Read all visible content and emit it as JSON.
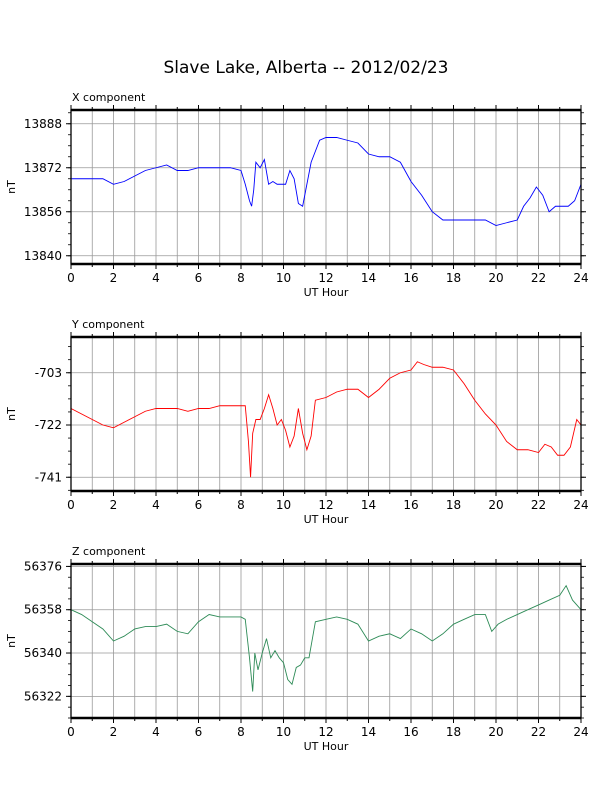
{
  "page_title": "Slave Lake, Alberta -- 2012/02/23",
  "chart_data": [
    {
      "type": "line",
      "title": "X component",
      "xlabel": "UT Hour",
      "ylabel": "nT",
      "xlim": [
        0,
        24
      ],
      "ylim": [
        13837,
        13893
      ],
      "xticks": [
        0,
        2,
        4,
        6,
        8,
        10,
        12,
        14,
        16,
        18,
        20,
        22,
        24
      ],
      "yticks": [
        13840,
        13856,
        13872,
        13888
      ],
      "grid": true,
      "color": "#0000ff",
      "series": [
        {
          "x": [
            0,
            0.5,
            1,
            1.5,
            2,
            2.5,
            3,
            3.5,
            4,
            4.5,
            5,
            5.5,
            6,
            6.5,
            7,
            7.5,
            8,
            8.2,
            8.4,
            8.5,
            8.6,
            8.7,
            8.9,
            9.1,
            9.3,
            9.5,
            9.7,
            9.9,
            10.1,
            10.3,
            10.5,
            10.7,
            10.9,
            11.1,
            11.3,
            11.5,
            11.7,
            12,
            12.5,
            13,
            13.5,
            14,
            14.5,
            15,
            15.5,
            16,
            16.5,
            17,
            17.5,
            18,
            18.5,
            19,
            19.5,
            20,
            20.5,
            21,
            21.3,
            21.6,
            21.9,
            22.2,
            22.5,
            22.8,
            23.1,
            23.4,
            23.7,
            24
          ],
          "values": [
            13868,
            13868,
            13868,
            13868,
            13866,
            13867,
            13869,
            13871,
            13872,
            13873,
            13871,
            13871,
            13872,
            13872,
            13872,
            13872,
            13871,
            13866,
            13860,
            13858,
            13864,
            13874,
            13872,
            13875,
            13866,
            13867,
            13866,
            13866,
            13866,
            13871,
            13868,
            13859,
            13858,
            13866,
            13874,
            13878,
            13882,
            13883,
            13883,
            13882,
            13881,
            13877,
            13876,
            13876,
            13874,
            13867,
            13862,
            13856,
            13853,
            13853,
            13853,
            13853,
            13853,
            13851,
            13852,
            13853,
            13858,
            13861,
            13865,
            13862,
            13856,
            13858,
            13858,
            13858,
            13860,
            13866
          ]
        }
      ]
    },
    {
      "type": "line",
      "title": "Y component",
      "xlabel": "UT Hour",
      "ylabel": "nT",
      "xlim": [
        0,
        24
      ],
      "ylim": [
        -746,
        -690
      ],
      "xticks": [
        0,
        2,
        4,
        6,
        8,
        10,
        12,
        14,
        16,
        18,
        20,
        22,
        24
      ],
      "yticks": [
        -703,
        -722,
        -741
      ],
      "grid": true,
      "color": "#ff0000",
      "series": [
        {
          "x": [
            0,
            0.5,
            1,
            1.5,
            2,
            2.5,
            3,
            3.5,
            4,
            4.5,
            5,
            5.5,
            6,
            6.5,
            7,
            7.5,
            8,
            8.2,
            8.35,
            8.45,
            8.55,
            8.7,
            8.9,
            9.1,
            9.3,
            9.5,
            9.7,
            9.9,
            10.1,
            10.3,
            10.5,
            10.7,
            10.9,
            11.1,
            11.3,
            11.5,
            12,
            12.5,
            13,
            13.5,
            14,
            14.5,
            15,
            15.5,
            16,
            16.3,
            16.6,
            17,
            17.5,
            18,
            18.5,
            19,
            19.5,
            20,
            20.5,
            21,
            21.5,
            22,
            22.3,
            22.6,
            22.9,
            23.2,
            23.5,
            23.8,
            24
          ],
          "values": [
            -716,
            -718,
            -720,
            -722,
            -723,
            -721,
            -719,
            -717,
            -716,
            -716,
            -716,
            -717,
            -716,
            -716,
            -715,
            -715,
            -715,
            -715,
            -728,
            -741,
            -725,
            -720,
            -720,
            -716,
            -711,
            -716,
            -722,
            -720,
            -724,
            -730,
            -726,
            -716,
            -725,
            -731,
            -726,
            -713,
            -712,
            -710,
            -709,
            -709,
            -712,
            -709,
            -705,
            -703,
            -702,
            -699,
            -700,
            -701,
            -701,
            -702,
            -707,
            -713,
            -718,
            -722,
            -728,
            -731,
            -731,
            -732,
            -729,
            -730,
            -733,
            -733,
            -730,
            -720,
            -722
          ]
        }
      ]
    },
    {
      "type": "line",
      "title": "Z component",
      "xlabel": "UT Hour",
      "ylabel": "nT",
      "xlim": [
        0,
        24
      ],
      "ylim": [
        56313,
        56377
      ],
      "xticks": [
        0,
        2,
        4,
        6,
        8,
        10,
        12,
        14,
        16,
        18,
        20,
        22,
        24
      ],
      "yticks": [
        56322,
        56340,
        56358,
        56376
      ],
      "grid": true,
      "color": "#2e8b57",
      "series": [
        {
          "x": [
            0,
            0.5,
            1,
            1.5,
            2,
            2.5,
            3,
            3.5,
            4,
            4.5,
            5,
            5.5,
            6,
            6.5,
            7,
            7.5,
            8,
            8.2,
            8.4,
            8.55,
            8.65,
            8.8,
            9,
            9.2,
            9.4,
            9.6,
            9.8,
            10,
            10.2,
            10.4,
            10.6,
            10.8,
            11,
            11.2,
            11.5,
            12,
            12.5,
            13,
            13.5,
            14,
            14.5,
            15,
            15.5,
            16,
            16.5,
            17,
            17.5,
            18,
            18.5,
            19,
            19.5,
            19.8,
            20.1,
            20.5,
            21,
            21.5,
            22,
            22.5,
            23,
            23.3,
            23.6,
            24
          ],
          "values": [
            56358,
            56356,
            56353,
            56350,
            56345,
            56347,
            56350,
            56351,
            56351,
            56352,
            56349,
            56348,
            56353,
            56356,
            56355,
            56355,
            56355,
            56354,
            56338,
            56324,
            56340,
            56333,
            56340,
            56346,
            56338,
            56341,
            56338,
            56336,
            56329,
            56327,
            56334,
            56335,
            56338,
            56338,
            56353,
            56354,
            56355,
            56354,
            56352,
            56345,
            56347,
            56348,
            56346,
            56350,
            56348,
            56345,
            56348,
            56352,
            56354,
            56356,
            56356,
            56349,
            56352,
            56354,
            56356,
            56358,
            56360,
            56362,
            56364,
            56368,
            56362,
            56358
          ]
        }
      ]
    }
  ]
}
